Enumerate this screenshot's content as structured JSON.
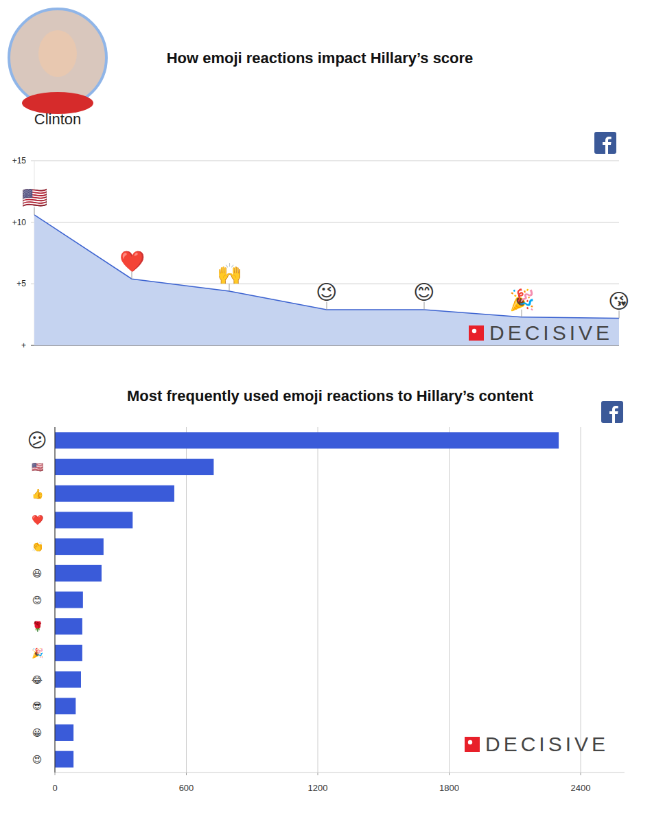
{
  "header": {
    "label": "Clinton"
  },
  "chart_data": [
    {
      "type": "area",
      "title": "How emoji reactions impact Hillary’s score",
      "categories": [
        "🇺🇸",
        "❤️",
        "🙌",
        "😉",
        "😊",
        "🎉",
        "😘"
      ],
      "values": [
        10.6,
        5.4,
        4.4,
        2.9,
        2.9,
        2.3,
        2.2
      ],
      "color": "#3b62d0",
      "ylim": [
        0,
        15
      ],
      "yticks": [
        {
          "value": 0,
          "label": "+"
        },
        {
          "value": 5,
          "label": "+5"
        },
        {
          "value": 10,
          "label": "+10"
        },
        {
          "value": 15,
          "label": "+15"
        }
      ],
      "grid": true,
      "annotations": [
        "DECISIVE"
      ]
    },
    {
      "type": "bar",
      "orientation": "horizontal",
      "title": "Most frequently used emoji reactions to Hillary’s content",
      "categories": [
        "😕",
        "🇺🇸",
        "👍",
        "❤️",
        "👏",
        "😃",
        "😊",
        "🌹",
        "🎉",
        "😂",
        "😎",
        "😀",
        "😍"
      ],
      "values": [
        2300,
        725,
        545,
        355,
        222,
        213,
        128,
        125,
        125,
        119,
        95,
        85,
        85
      ],
      "color": "#3a5bd9",
      "xlim": [
        0,
        2600
      ],
      "xticks": [
        0,
        600,
        1200,
        1800,
        2400
      ],
      "grid": true,
      "annotations": [
        "DECISIVE"
      ]
    }
  ]
}
